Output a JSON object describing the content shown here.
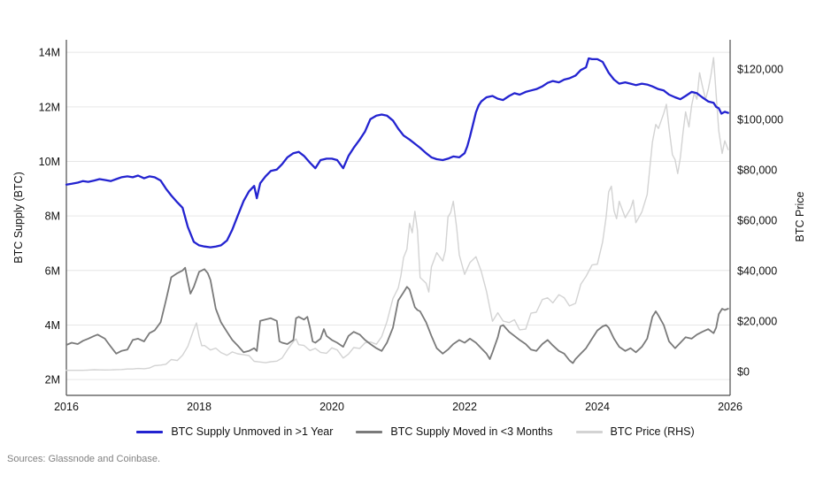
{
  "source_note": "Sources: Glassnode and Coinbase.",
  "chart_data": {
    "type": "line",
    "title": "",
    "grid": true,
    "legend_position": "bottom-center",
    "x_range": [
      2016,
      2026
    ],
    "x_tick_values": [
      2016,
      2018,
      2020,
      2022,
      2024,
      2026
    ],
    "x_tick_labels": [
      "2016",
      "2018",
      "2020",
      "2022",
      "2024",
      "2026"
    ],
    "left_axis": {
      "label": "BTC Supply (BTC)",
      "unit": "million BTC",
      "range": [
        1.42,
        14.46
      ],
      "tick_values": [
        2,
        4,
        6,
        8,
        10,
        12,
        14
      ],
      "tick_labels": [
        "2M",
        "4M",
        "6M",
        "8M",
        "10M",
        "12M",
        "14M"
      ]
    },
    "right_axis": {
      "label": "BTC Price",
      "unit": "USD",
      "range": [
        -9500,
        131600
      ],
      "tick_values": [
        0,
        20000,
        40000,
        60000,
        80000,
        100000,
        120000
      ],
      "tick_labels": [
        "$0",
        "$20,000",
        "$40,000",
        "$60,000",
        "$80,000",
        "$100,000",
        "$120,000"
      ]
    },
    "colors": {
      "grid": "#e6e6e6",
      "spine": "#4d4d4d",
      "text": "#111111",
      "source_text": "#818181"
    },
    "series": [
      {
        "id": "btc-price",
        "name": "BTC Price (RHS)",
        "axis": "right",
        "color": "#d3d3d3",
        "stroke_width": 1.4,
        "x": [
          2016.0,
          2016.08,
          2016.17,
          2016.25,
          2016.33,
          2016.42,
          2016.5,
          2016.58,
          2016.67,
          2016.75,
          2016.83,
          2016.92,
          2017.0,
          2017.08,
          2017.17,
          2017.25,
          2017.33,
          2017.42,
          2017.5,
          2017.58,
          2017.67,
          2017.75,
          2017.83,
          2017.92,
          2017.96,
          2018.0,
          2018.04,
          2018.08,
          2018.17,
          2018.25,
          2018.33,
          2018.42,
          2018.5,
          2018.58,
          2018.67,
          2018.75,
          2018.83,
          2018.92,
          2019.0,
          2019.08,
          2019.17,
          2019.25,
          2019.33,
          2019.42,
          2019.46,
          2019.5,
          2019.58,
          2019.67,
          2019.75,
          2019.83,
          2019.92,
          2020.0,
          2020.08,
          2020.17,
          2020.25,
          2020.33,
          2020.42,
          2020.5,
          2020.58,
          2020.67,
          2020.75,
          2020.83,
          2020.92,
          2021.0,
          2021.04,
          2021.08,
          2021.13,
          2021.17,
          2021.21,
          2021.25,
          2021.29,
          2021.33,
          2021.42,
          2021.46,
          2021.5,
          2021.58,
          2021.67,
          2021.71,
          2021.75,
          2021.79,
          2021.83,
          2021.88,
          2021.92,
          2022.0,
          2022.08,
          2022.17,
          2022.25,
          2022.33,
          2022.42,
          2022.5,
          2022.58,
          2022.67,
          2022.75,
          2022.83,
          2022.92,
          2023.0,
          2023.08,
          2023.17,
          2023.25,
          2023.33,
          2023.42,
          2023.5,
          2023.58,
          2023.67,
          2023.75,
          2023.83,
          2023.92,
          2024.0,
          2024.08,
          2024.13,
          2024.17,
          2024.21,
          2024.25,
          2024.29,
          2024.33,
          2024.42,
          2024.5,
          2024.54,
          2024.58,
          2024.67,
          2024.75,
          2024.83,
          2024.88,
          2024.92,
          2025.0,
          2025.04,
          2025.08,
          2025.13,
          2025.17,
          2025.21,
          2025.25,
          2025.29,
          2025.33,
          2025.38,
          2025.42,
          2025.46,
          2025.5,
          2025.54,
          2025.58,
          2025.63,
          2025.67,
          2025.71,
          2025.75,
          2025.79,
          2025.83,
          2025.88,
          2025.92,
          2025.97
        ],
        "y": [
          430,
          435,
          417,
          450,
          530,
          670,
          625,
          575,
          610,
          700,
          745,
          960,
          970,
          1180,
          1080,
          1350,
          2300,
          2500,
          2870,
          4700,
          4340,
          6450,
          9900,
          16700,
          19200,
          13900,
          10200,
          10300,
          8500,
          9250,
          7500,
          6400,
          7750,
          7000,
          6600,
          6300,
          4000,
          3750,
          3450,
          3850,
          4100,
          5300,
          8550,
          11800,
          12900,
          10600,
          10300,
          8300,
          9150,
          7550,
          7200,
          9350,
          8550,
          5300,
          6900,
          9450,
          9150,
          11350,
          11650,
          10800,
          13800,
          19700,
          28900,
          33100,
          38000,
          45200,
          48500,
          58800,
          55000,
          63500,
          56000,
          37300,
          35000,
          31500,
          41500,
          47100,
          43800,
          48000,
          61300,
          63000,
          67500,
          57000,
          46200,
          38500,
          43200,
          45500,
          39700,
          31800,
          19900,
          23300,
          20000,
          19400,
          20500,
          16500,
          16800,
          23100,
          23500,
          28500,
          29200,
          27200,
          30450,
          29250,
          26000,
          27000,
          34600,
          37700,
          42250,
          42550,
          51500,
          61000,
          71300,
          73500,
          63800,
          60600,
          67500,
          61000,
          64600,
          68000,
          59000,
          63300,
          70200,
          91000,
          98000,
          96400,
          102400,
          106000,
          96500,
          86000,
          84000,
          78500,
          85000,
          94500,
          103000,
          97000,
          105500,
          110500,
          108000,
          118500,
          113500,
          108000,
          112000,
          117500,
          124500,
          110000,
          95500,
          86500,
          91500,
          88000
        ]
      },
      {
        "id": "supply-moved-3mo",
        "name": "BTC Supply Moved in <3 Months",
        "axis": "left",
        "color": "#7a7a7a",
        "stroke_width": 1.8,
        "x": [
          2016.0,
          2016.08,
          2016.17,
          2016.25,
          2016.33,
          2016.42,
          2016.47,
          2016.58,
          2016.67,
          2016.75,
          2016.83,
          2016.92,
          2017.0,
          2017.08,
          2017.17,
          2017.25,
          2017.33,
          2017.42,
          2017.5,
          2017.58,
          2017.67,
          2017.75,
          2017.79,
          2017.83,
          2017.87,
          2017.92,
          2018.0,
          2018.08,
          2018.13,
          2018.17,
          2018.25,
          2018.33,
          2018.42,
          2018.5,
          2018.58,
          2018.67,
          2018.75,
          2018.83,
          2018.87,
          2018.92,
          2019.0,
          2019.08,
          2019.17,
          2019.21,
          2019.25,
          2019.33,
          2019.42,
          2019.46,
          2019.5,
          2019.58,
          2019.63,
          2019.67,
          2019.71,
          2019.75,
          2019.83,
          2019.88,
          2019.92,
          2020.0,
          2020.08,
          2020.17,
          2020.25,
          2020.33,
          2020.42,
          2020.5,
          2020.58,
          2020.67,
          2020.75,
          2020.83,
          2020.92,
          2021.0,
          2021.08,
          2021.13,
          2021.17,
          2021.25,
          2021.29,
          2021.33,
          2021.42,
          2021.5,
          2021.58,
          2021.67,
          2021.75,
          2021.83,
          2021.92,
          2022.0,
          2022.08,
          2022.17,
          2022.25,
          2022.33,
          2022.38,
          2022.42,
          2022.5,
          2022.54,
          2022.58,
          2022.67,
          2022.75,
          2022.83,
          2022.92,
          2023.0,
          2023.08,
          2023.17,
          2023.25,
          2023.33,
          2023.42,
          2023.5,
          2023.58,
          2023.63,
          2023.67,
          2023.75,
          2023.83,
          2023.92,
          2024.0,
          2024.08,
          2024.13,
          2024.17,
          2024.25,
          2024.33,
          2024.42,
          2024.5,
          2024.58,
          2024.67,
          2024.75,
          2024.83,
          2024.88,
          2024.92,
          2025.0,
          2025.08,
          2025.17,
          2025.25,
          2025.33,
          2025.42,
          2025.5,
          2025.58,
          2025.67,
          2025.75,
          2025.79,
          2025.83,
          2025.88,
          2025.92,
          2025.97
        ],
        "y": [
          3.27,
          3.35,
          3.3,
          3.42,
          3.5,
          3.6,
          3.65,
          3.5,
          3.2,
          2.95,
          3.05,
          3.1,
          3.45,
          3.5,
          3.4,
          3.7,
          3.8,
          4.1,
          4.9,
          5.75,
          5.9,
          6.0,
          6.1,
          5.6,
          5.15,
          5.4,
          5.95,
          6.05,
          5.9,
          5.65,
          4.6,
          4.1,
          3.75,
          3.45,
          3.25,
          3.0,
          3.05,
          3.15,
          3.05,
          4.15,
          4.2,
          4.25,
          4.15,
          3.4,
          3.35,
          3.3,
          3.45,
          4.25,
          4.3,
          4.2,
          4.3,
          3.9,
          3.4,
          3.35,
          3.5,
          3.85,
          3.6,
          3.45,
          3.35,
          3.2,
          3.6,
          3.75,
          3.65,
          3.45,
          3.3,
          3.15,
          3.05,
          3.35,
          3.9,
          4.9,
          5.2,
          5.4,
          5.3,
          4.65,
          4.55,
          4.5,
          4.1,
          3.6,
          3.15,
          2.95,
          3.1,
          3.3,
          3.45,
          3.35,
          3.5,
          3.35,
          3.15,
          2.95,
          2.75,
          3.0,
          3.55,
          3.95,
          4.0,
          3.75,
          3.6,
          3.45,
          3.3,
          3.1,
          3.05,
          3.3,
          3.45,
          3.25,
          3.05,
          2.95,
          2.7,
          2.6,
          2.75,
          2.95,
          3.15,
          3.5,
          3.8,
          3.95,
          4.0,
          3.9,
          3.5,
          3.2,
          3.05,
          3.15,
          3.0,
          3.2,
          3.5,
          4.3,
          4.5,
          4.35,
          4.0,
          3.4,
          3.15,
          3.35,
          3.55,
          3.5,
          3.65,
          3.75,
          3.85,
          3.7,
          3.9,
          4.4,
          4.6,
          4.55,
          4.6
        ]
      },
      {
        "id": "supply-unmoved-1yr",
        "name": "BTC Supply Unmoved in >1 Year",
        "axis": "left",
        "color": "#2323d0",
        "stroke_width": 2.3,
        "x": [
          2016.0,
          2016.08,
          2016.17,
          2016.25,
          2016.33,
          2016.42,
          2016.5,
          2016.58,
          2016.67,
          2016.75,
          2016.83,
          2016.92,
          2017.0,
          2017.08,
          2017.17,
          2017.25,
          2017.33,
          2017.42,
          2017.5,
          2017.58,
          2017.67,
          2017.75,
          2017.83,
          2017.92,
          2018.0,
          2018.08,
          2018.17,
          2018.25,
          2018.33,
          2018.42,
          2018.5,
          2018.58,
          2018.67,
          2018.75,
          2018.83,
          2018.87,
          2018.92,
          2019.0,
          2019.08,
          2019.17,
          2019.25,
          2019.33,
          2019.42,
          2019.5,
          2019.58,
          2019.67,
          2019.75,
          2019.83,
          2019.92,
          2020.0,
          2020.08,
          2020.17,
          2020.25,
          2020.33,
          2020.42,
          2020.5,
          2020.58,
          2020.67,
          2020.75,
          2020.83,
          2020.92,
          2021.0,
          2021.08,
          2021.17,
          2021.25,
          2021.33,
          2021.42,
          2021.5,
          2021.58,
          2021.67,
          2021.75,
          2021.83,
          2021.92,
          2022.0,
          2022.04,
          2022.08,
          2022.13,
          2022.17,
          2022.21,
          2022.25,
          2022.33,
          2022.42,
          2022.5,
          2022.58,
          2022.67,
          2022.75,
          2022.83,
          2022.92,
          2023.0,
          2023.08,
          2023.17,
          2023.25,
          2023.33,
          2023.42,
          2023.5,
          2023.58,
          2023.67,
          2023.75,
          2023.83,
          2023.87,
          2023.92,
          2024.0,
          2024.08,
          2024.17,
          2024.25,
          2024.33,
          2024.42,
          2024.5,
          2024.58,
          2024.67,
          2024.75,
          2024.83,
          2024.92,
          2025.0,
          2025.08,
          2025.17,
          2025.25,
          2025.33,
          2025.42,
          2025.5,
          2025.58,
          2025.67,
          2025.75,
          2025.79,
          2025.83,
          2025.87,
          2025.92,
          2025.97
        ],
        "y": [
          9.15,
          9.18,
          9.22,
          9.28,
          9.25,
          9.3,
          9.35,
          9.32,
          9.28,
          9.35,
          9.42,
          9.45,
          9.42,
          9.48,
          9.38,
          9.45,
          9.42,
          9.3,
          9.0,
          8.75,
          8.5,
          8.3,
          7.6,
          7.05,
          6.92,
          6.88,
          6.85,
          6.88,
          6.92,
          7.1,
          7.5,
          8.0,
          8.55,
          8.9,
          9.1,
          8.65,
          9.2,
          9.45,
          9.65,
          9.7,
          9.9,
          10.15,
          10.3,
          10.35,
          10.2,
          9.95,
          9.75,
          10.05,
          10.1,
          10.1,
          10.05,
          9.75,
          10.2,
          10.5,
          10.8,
          11.1,
          11.55,
          11.68,
          11.72,
          11.68,
          11.5,
          11.2,
          10.95,
          10.8,
          10.65,
          10.5,
          10.3,
          10.15,
          10.08,
          10.05,
          10.1,
          10.18,
          10.15,
          10.3,
          10.55,
          10.9,
          11.4,
          11.8,
          12.05,
          12.2,
          12.35,
          12.4,
          12.3,
          12.25,
          12.4,
          12.5,
          12.45,
          12.55,
          12.6,
          12.65,
          12.75,
          12.88,
          12.95,
          12.9,
          13.0,
          13.05,
          13.15,
          13.35,
          13.45,
          13.78,
          13.75,
          13.75,
          13.65,
          13.25,
          13.0,
          12.85,
          12.9,
          12.85,
          12.8,
          12.85,
          12.82,
          12.75,
          12.65,
          12.6,
          12.45,
          12.35,
          12.28,
          12.4,
          12.55,
          12.5,
          12.35,
          12.2,
          12.15,
          12.0,
          11.95,
          11.75,
          11.82,
          11.78
        ]
      }
    ]
  }
}
